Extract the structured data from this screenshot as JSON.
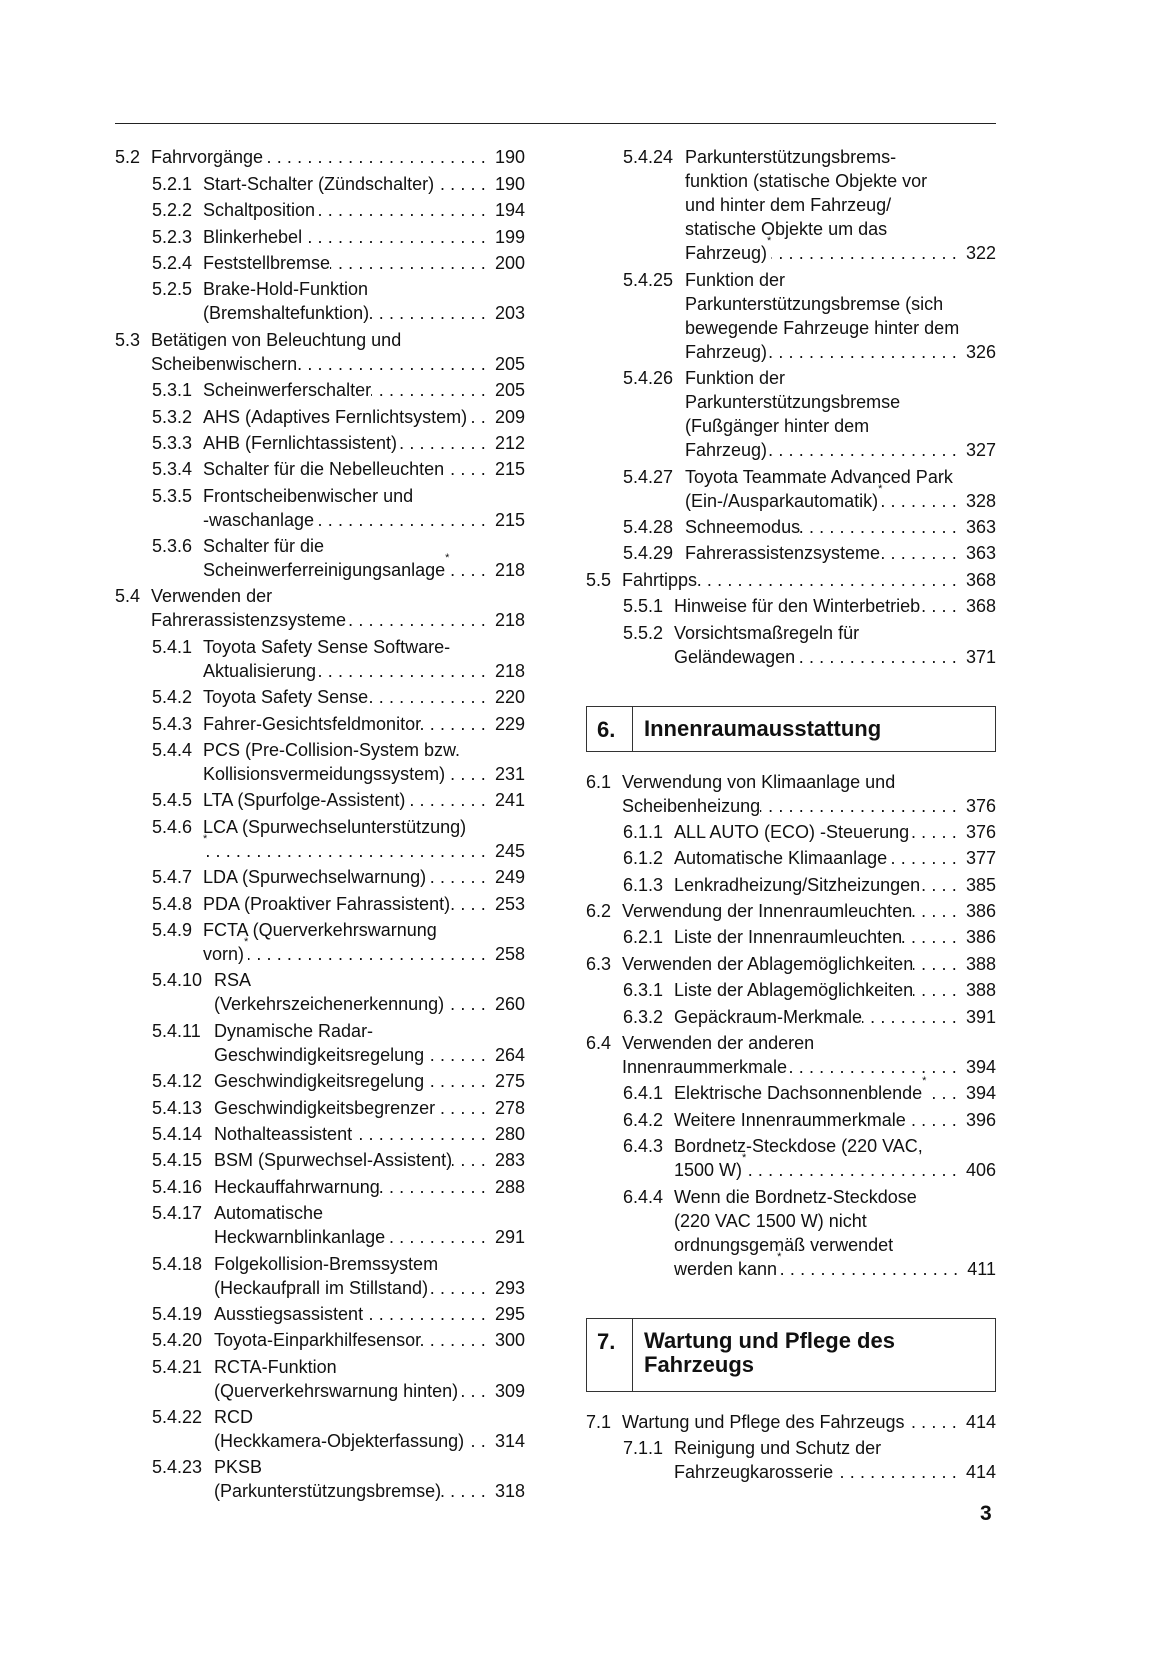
{
  "left": [
    {
      "level": 1,
      "num": "5.2",
      "lines": [
        "Fahrvorgänge"
      ],
      "page": "190"
    },
    {
      "level": 2,
      "num": "5.2.1",
      "lines": [
        "Start-Schalter (Zündschalter)"
      ],
      "page": "190"
    },
    {
      "level": 2,
      "num": "5.2.2",
      "lines": [
        "Schaltposition"
      ],
      "page": "194"
    },
    {
      "level": 2,
      "num": "5.2.3",
      "lines": [
        "Blinkerhebel"
      ],
      "page": "199"
    },
    {
      "level": 2,
      "num": "5.2.4",
      "lines": [
        "Feststellbremse"
      ],
      "page": "200"
    },
    {
      "level": 2,
      "num": "5.2.5",
      "lines": [
        "Brake-Hold-Funktion",
        "(Bremshaltefunktion)"
      ],
      "page": "203"
    },
    {
      "level": 1,
      "num": "5.3",
      "lines": [
        "Betätigen von Beleuchtung und",
        "Scheibenwischern"
      ],
      "page": "205"
    },
    {
      "level": 2,
      "num": "5.3.1",
      "lines": [
        "Scheinwerferschalter"
      ],
      "page": "205"
    },
    {
      "level": 2,
      "num": "5.3.2",
      "lines": [
        "AHS (Adaptives Fernlichtsystem)"
      ],
      "page": "209"
    },
    {
      "level": 2,
      "num": "5.3.3",
      "lines": [
        "AHB (Fernlichtassistent)"
      ],
      "page": "212"
    },
    {
      "level": 2,
      "num": "5.3.4",
      "lines": [
        "Schalter für die Nebelleuchten"
      ],
      "page": "215"
    },
    {
      "level": 2,
      "num": "5.3.5",
      "lines": [
        "Frontscheibenwischer und",
        "-waschanlage"
      ],
      "page": "215"
    },
    {
      "level": 2,
      "num": "5.3.6",
      "lines": [
        "Schalter für die",
        "Scheinwerferreinigungsanlage"
      ],
      "star": true,
      "page": "218"
    },
    {
      "level": 1,
      "num": "5.4",
      "lines": [
        "Verwenden der",
        "Fahrerassistenzsysteme"
      ],
      "page": "218"
    },
    {
      "level": 2,
      "num": "5.4.1",
      "lines": [
        "Toyota Safety Sense Software-",
        "Aktualisierung"
      ],
      "page": "218"
    },
    {
      "level": 2,
      "num": "5.4.2",
      "lines": [
        "Toyota Safety Sense"
      ],
      "page": "220"
    },
    {
      "level": 2,
      "num": "5.4.3",
      "lines": [
        "Fahrer-Gesichtsfeldmonitor"
      ],
      "page": "229"
    },
    {
      "level": 2,
      "num": "5.4.4",
      "lines": [
        "PCS (Pre-Collision-System bzw.",
        "Kollisionsvermeidungssystem)"
      ],
      "page": "231"
    },
    {
      "level": 2,
      "num": "5.4.5",
      "lines": [
        "LTA (Spurfolge-Assistent)"
      ],
      "page": "241"
    },
    {
      "level": 2,
      "num": "5.4.6",
      "lines": [
        "LCA (Spurwechselunterstützung)",
        ""
      ],
      "star": true,
      "page": "245"
    },
    {
      "level": 2,
      "num": "5.4.7",
      "lines": [
        "LDA (Spurwechselwarnung)"
      ],
      "page": "249"
    },
    {
      "level": 2,
      "num": "5.4.8",
      "lines": [
        "PDA (Proaktiver Fahrassistent)"
      ],
      "page": "253"
    },
    {
      "level": 2,
      "num": "5.4.9",
      "lines": [
        "FCTA (Querverkehrswarnung",
        "vorn)"
      ],
      "star": true,
      "page": "258"
    },
    {
      "level": 2,
      "num": "5.4.10",
      "lines": [
        "RSA",
        "(Verkehrszeichenerkennung)"
      ],
      "page": "260"
    },
    {
      "level": 2,
      "num": "5.4.11",
      "lines": [
        "Dynamische Radar-",
        "Geschwindigkeitsregelung"
      ],
      "page": "264"
    },
    {
      "level": 2,
      "num": "5.4.12",
      "lines": [
        "Geschwindigkeitsregelung"
      ],
      "page": "275"
    },
    {
      "level": 2,
      "num": "5.4.13",
      "lines": [
        "Geschwindigkeitsbegrenzer"
      ],
      "page": "278"
    },
    {
      "level": 2,
      "num": "5.4.14",
      "lines": [
        "Nothalteassistent"
      ],
      "page": "280"
    },
    {
      "level": 2,
      "num": "5.4.15",
      "lines": [
        "BSM (Spurwechsel-Assistent)"
      ],
      "page": "283"
    },
    {
      "level": 2,
      "num": "5.4.16",
      "lines": [
        "Heckauffahrwarnung"
      ],
      "page": "288"
    },
    {
      "level": 2,
      "num": "5.4.17",
      "lines": [
        "Automatische",
        "Heckwarnblinkanlage"
      ],
      "page": "291"
    },
    {
      "level": 2,
      "num": "5.4.18",
      "lines": [
        "Folgekollision-Bremssystem",
        "(Heckaufprall im Stillstand)"
      ],
      "page": "293"
    },
    {
      "level": 2,
      "num": "5.4.19",
      "lines": [
        "Ausstiegsassistent"
      ],
      "page": "295"
    },
    {
      "level": 2,
      "num": "5.4.20",
      "lines": [
        "Toyota-Einparkhilfesensor"
      ],
      "page": "300"
    },
    {
      "level": 2,
      "num": "5.4.21",
      "lines": [
        "RCTA-Funktion",
        "(Querverkehrswarnung hinten)"
      ],
      "page": "309"
    },
    {
      "level": 2,
      "num": "5.4.22",
      "lines": [
        "RCD",
        "(Heckkamera-Objekterfassung)"
      ],
      "page": "314"
    },
    {
      "level": 2,
      "num": "5.4.23",
      "lines": [
        "PKSB",
        "(Parkunterstützungsbremse)"
      ],
      "page": "318"
    }
  ],
  "right_top": [
    {
      "level": 2,
      "num": "5.4.24",
      "lines": [
        "Parkunterstützungsbrems-",
        "funktion (statische Objekte vor",
        "und hinter dem Fahrzeug/",
        "statische Objekte um das",
        "Fahrzeug)"
      ],
      "star": true,
      "page": "322"
    },
    {
      "level": 2,
      "num": "5.4.25",
      "lines": [
        "Funktion der",
        "Parkunterstützungsbremse (sich",
        "bewegende Fahrzeuge hinter dem",
        "Fahrzeug)"
      ],
      "page": "326"
    },
    {
      "level": 2,
      "num": "5.4.26",
      "lines": [
        "Funktion der",
        "Parkunterstützungsbremse",
        "(Fußgänger hinter dem",
        "Fahrzeug)"
      ],
      "page": "327"
    },
    {
      "level": 2,
      "num": "5.4.27",
      "lines": [
        "Toyota Teammate Advanced Park",
        "(Ein-/Ausparkautomatik)"
      ],
      "star": true,
      "page": "328"
    },
    {
      "level": 2,
      "num": "5.4.28",
      "lines": [
        "Schneemodus"
      ],
      "page": "363"
    },
    {
      "level": 2,
      "num": "5.4.29",
      "lines": [
        "Fahrerassistenzsysteme"
      ],
      "page": "363"
    },
    {
      "level": 1,
      "num": "5.5",
      "lines": [
        "Fahrtipps"
      ],
      "page": "368"
    },
    {
      "level": 2,
      "num": "5.5.1",
      "lines": [
        "Hinweise für den Winterbetrieb"
      ],
      "page": "368"
    },
    {
      "level": 2,
      "num": "5.5.2",
      "lines": [
        "Vorsichtsmaßregeln für",
        "Geländewagen"
      ],
      "page": "371"
    }
  ],
  "chapter6": {
    "num": "6.",
    "title": "Innenraumausstattung"
  },
  "right_mid": [
    {
      "level": 1,
      "num": "6.1",
      "lines": [
        "Verwendung von Klimaanlage und",
        "Scheibenheizung"
      ],
      "page": "376"
    },
    {
      "level": 2,
      "num": "6.1.1",
      "lines": [
        "ALL AUTO (ECO) -Steuerung"
      ],
      "page": "376"
    },
    {
      "level": 2,
      "num": "6.1.2",
      "lines": [
        "Automatische Klimaanlage"
      ],
      "page": "377"
    },
    {
      "level": 2,
      "num": "6.1.3",
      "lines": [
        "Lenkradheizung/Sitzheizungen"
      ],
      "page": "385"
    },
    {
      "level": 1,
      "num": "6.2",
      "lines": [
        "Verwendung der Innenraumleuchten"
      ],
      "page": "386"
    },
    {
      "level": 2,
      "num": "6.2.1",
      "lines": [
        "Liste der Innenraumleuchten"
      ],
      "page": "386"
    },
    {
      "level": 1,
      "num": "6.3",
      "lines": [
        "Verwenden der Ablagemöglichkeiten"
      ],
      "page": "388"
    },
    {
      "level": 2,
      "num": "6.3.1",
      "lines": [
        "Liste der Ablagemöglichkeiten"
      ],
      "page": "388"
    },
    {
      "level": 2,
      "num": "6.3.2",
      "lines": [
        "Gepäckraum-Merkmale"
      ],
      "page": "391"
    },
    {
      "level": 1,
      "num": "6.4",
      "lines": [
        "Verwenden der anderen",
        "Innenraummerkmale"
      ],
      "page": "394"
    },
    {
      "level": 2,
      "num": "6.4.1",
      "lines": [
        "Elektrische Dachsonnenblende"
      ],
      "star": true,
      "page": "394"
    },
    {
      "level": 2,
      "num": "6.4.2",
      "lines": [
        "Weitere Innenraummerkmale"
      ],
      "page": "396"
    },
    {
      "level": 2,
      "num": "6.4.3",
      "lines": [
        "Bordnetz-Steckdose (220 VAC,",
        "1500 W)"
      ],
      "star": true,
      "page": "406"
    },
    {
      "level": 2,
      "num": "6.4.4",
      "lines": [
        "Wenn die Bordnetz-Steckdose",
        "(220 VAC 1500 W) nicht",
        "ordnungsgemäß verwendet",
        "werden kann"
      ],
      "star": true,
      "page": "411"
    }
  ],
  "chapter7": {
    "num": "7.",
    "title_lines": [
      "Wartung und Pflege des",
      "Fahrzeugs"
    ]
  },
  "right_bottom": [
    {
      "level": 1,
      "num": "7.1",
      "lines": [
        "Wartung und Pflege des Fahrzeugs"
      ],
      "page": "414"
    },
    {
      "level": 2,
      "num": "7.1.1",
      "lines": [
        "Reinigung und Schutz der",
        "Fahrzeugkarosserie"
      ],
      "page": "414"
    }
  ],
  "page_number": "3"
}
